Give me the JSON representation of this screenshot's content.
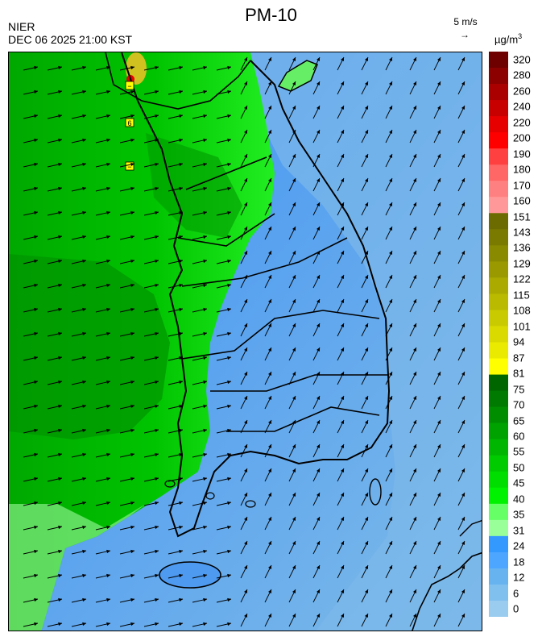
{
  "header": {
    "title": "PM-10",
    "agency": "NIER",
    "datetime": "DEC 06 2025 21:00 KST",
    "wind_reference": "5 m/s",
    "wind_reference_arrow": "→",
    "unit_base": "µg/m",
    "unit_exponent": "3"
  },
  "colorbar": {
    "labels": [
      "320",
      "280",
      "260",
      "240",
      "220",
      "200",
      "190",
      "180",
      "170",
      "160",
      "151",
      "143",
      "136",
      "129",
      "122",
      "115",
      "108",
      "101",
      "94",
      "87",
      "81",
      "75",
      "70",
      "65",
      "60",
      "55",
      "50",
      "45",
      "40",
      "35",
      "31",
      "24",
      "18",
      "12",
      "6",
      "0"
    ],
    "colors": [
      "#6e0000",
      "#8c0000",
      "#aa0000",
      "#c80000",
      "#e60000",
      "#ff0000",
      "#ff4040",
      "#ff6666",
      "#ff8080",
      "#ff9999",
      "#6b6b00",
      "#7a7a00",
      "#8a8a00",
      "#9a9a00",
      "#aaaa00",
      "#baba00",
      "#caca00",
      "#dada00",
      "#eaea00",
      "#ffff00",
      "#006600",
      "#007a00",
      "#008e00",
      "#00a200",
      "#00b600",
      "#00ca00",
      "#00de00",
      "#00f200",
      "#66ff66",
      "#99ff99",
      "#3399ff",
      "#4da6ff",
      "#66b3f0",
      "#80c0ee",
      "#99ccee"
    ]
  },
  "map": {
    "wind_direction": "north-east",
    "markers": [
      {
        "label": "6"
      },
      {
        "label": "−"
      },
      {
        "label": "−"
      }
    ]
  }
}
